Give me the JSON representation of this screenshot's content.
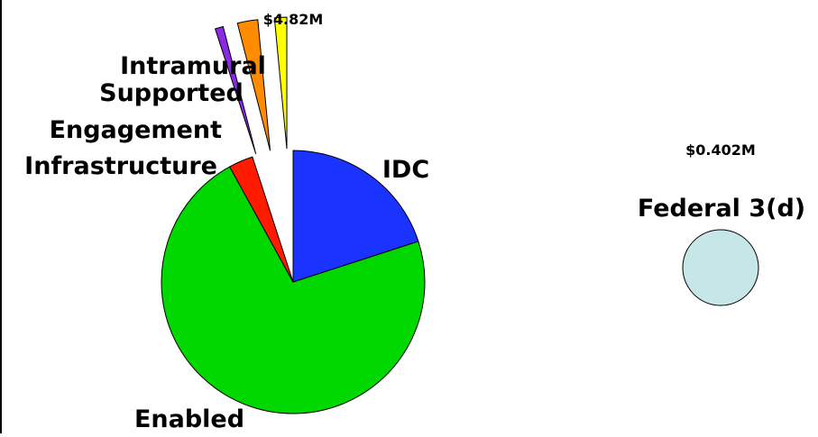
{
  "chart_data": [
    {
      "type": "pie",
      "title": "$4.82M",
      "slices": [
        {
          "label": "IDC",
          "value": 20.0,
          "color": "#1a33ff",
          "exploded": false
        },
        {
          "label": "Enabled",
          "value": 72.0,
          "color": "#00d800",
          "exploded": false
        },
        {
          "label": "Infrastructure",
          "value": 3.0,
          "color": "#ff1a00",
          "exploded": false
        },
        {
          "label": "Engagement",
          "value": 1.0,
          "color": "#8a2be2",
          "exploded": true
        },
        {
          "label": "Supported",
          "value": 2.5,
          "color": "#ff8c00",
          "exploded": true
        },
        {
          "label": "Intramural",
          "value": 1.5,
          "color": "#ffff00",
          "exploded": true
        }
      ]
    },
    {
      "type": "pie",
      "title": "$0.402M",
      "slices": [
        {
          "label": "Federal 3(d)",
          "value": 100,
          "color": "#c6e6e8",
          "exploded": false
        }
      ]
    }
  ]
}
